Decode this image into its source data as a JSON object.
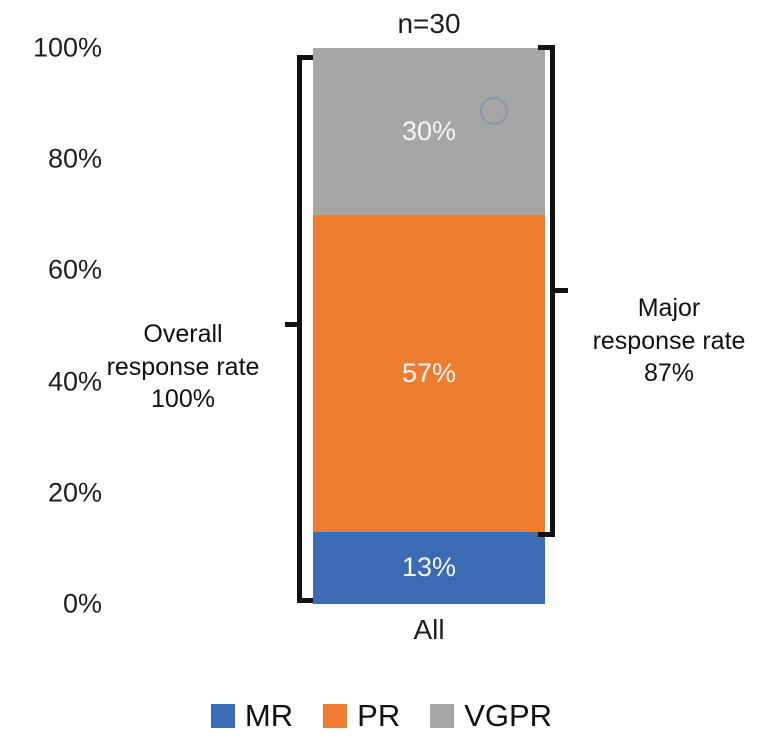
{
  "chart_data": {
    "type": "bar",
    "stacked": true,
    "title": "n=30",
    "categories": [
      "All"
    ],
    "series": [
      {
        "name": "MR",
        "values": [
          13
        ],
        "data_label": "13%",
        "color": "#3A6BB4"
      },
      {
        "name": "PR",
        "values": [
          57
        ],
        "data_label": "57%",
        "color": "#ED7D31"
      },
      {
        "name": "VGPR",
        "values": [
          30
        ],
        "data_label": "30%",
        "color": "#A6A6A6"
      }
    ],
    "ylim": [
      0,
      100
    ],
    "ytick_values": [
      0,
      20,
      40,
      60,
      80,
      100
    ],
    "ytick_labels": [
      "0%",
      "20%",
      "40%",
      "60%",
      "80%",
      "100%"
    ],
    "grid": false,
    "legend_position": "bottom",
    "legend_entries": [
      "MR",
      "PR",
      "VGPR"
    ],
    "annotations": {
      "left": {
        "lines": [
          "Overall",
          "response rate",
          "100%"
        ],
        "value_range": [
          0,
          100
        ]
      },
      "right": {
        "lines": [
          "Major",
          "response rate",
          "87%"
        ],
        "value_range": [
          13,
          100
        ]
      }
    }
  }
}
